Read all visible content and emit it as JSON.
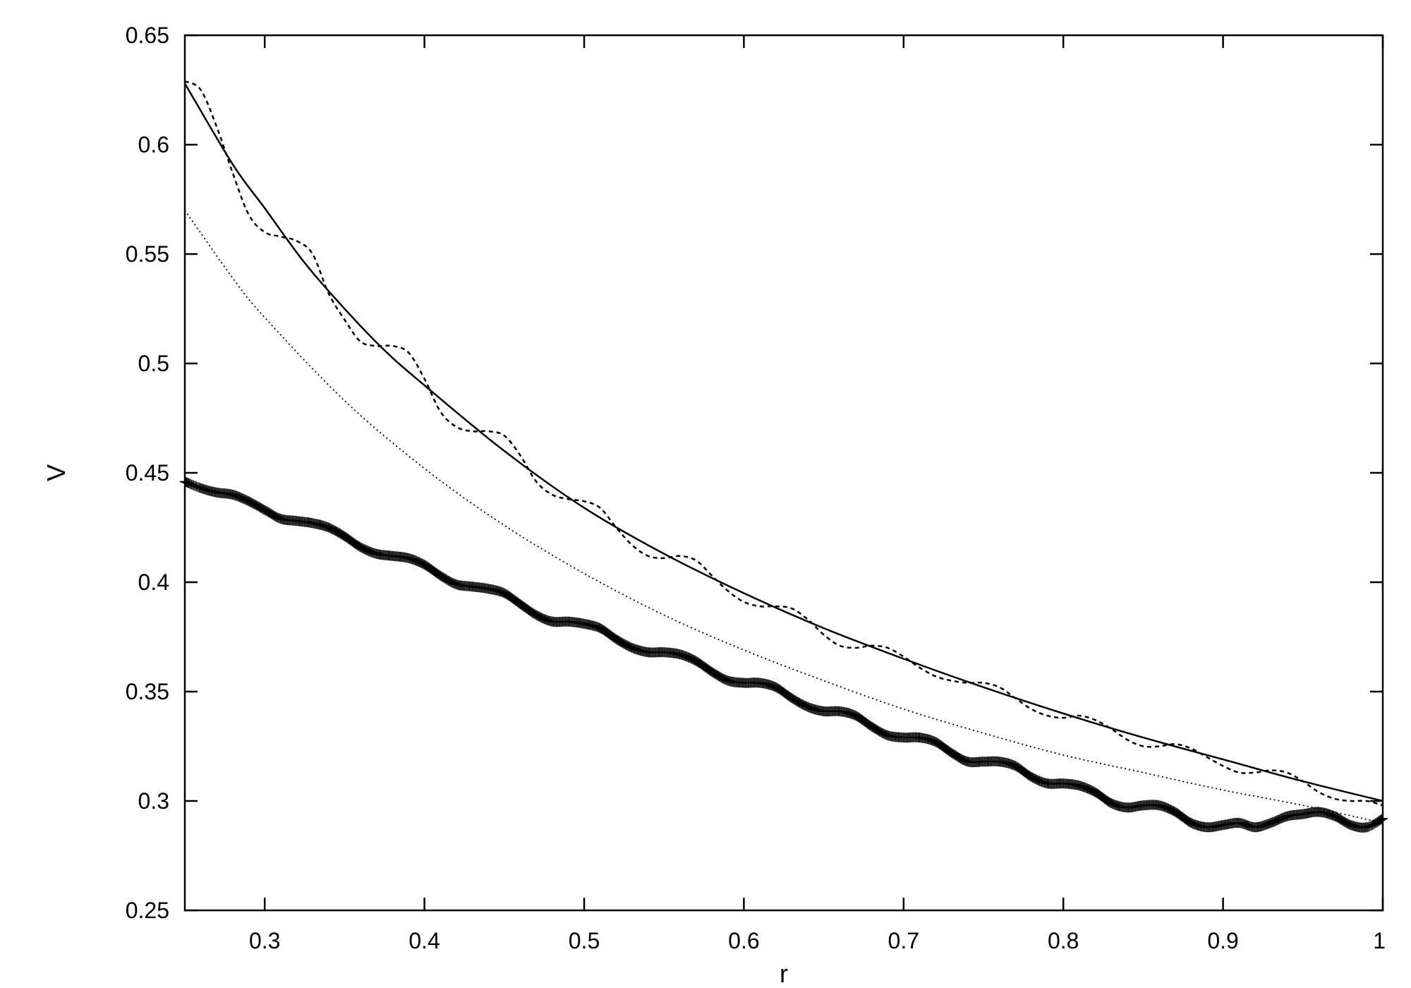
{
  "chart_data": {
    "type": "line",
    "title": "",
    "xlabel": "r",
    "ylabel": "V",
    "xlim": [
      0.25,
      1.0
    ],
    "ylim": [
      0.25,
      0.65
    ],
    "grid": false,
    "legend": "none",
    "xticks": [
      "0.3",
      "0.4",
      "0.5",
      "0.6",
      "0.7",
      "0.8",
      "0.9",
      "1"
    ],
    "yticks": [
      "0.25",
      "0.3",
      "0.35",
      "0.4",
      "0.45",
      "0.5",
      "0.55",
      "0.6",
      "0.65"
    ],
    "series": [
      {
        "style": "solid",
        "x": [
          0.25,
          0.28,
          0.3,
          0.325,
          0.35,
          0.375,
          0.4,
          0.45,
          0.5,
          0.55,
          0.6,
          0.65,
          0.7,
          0.75,
          0.8,
          0.85,
          0.9,
          0.95,
          1.0
        ],
        "y": [
          0.628,
          0.591,
          0.571,
          0.546,
          0.525,
          0.506,
          0.49,
          0.46,
          0.434,
          0.413,
          0.395,
          0.379,
          0.365,
          0.352,
          0.34,
          0.329,
          0.319,
          0.309,
          0.3
        ]
      },
      {
        "style": "dashed",
        "x": [
          0.25,
          0.26,
          0.27,
          0.28,
          0.29,
          0.3,
          0.31,
          0.32,
          0.33,
          0.34,
          0.35,
          0.36,
          0.37,
          0.38,
          0.39,
          0.4,
          0.41,
          0.42,
          0.43,
          0.44,
          0.45,
          0.46,
          0.47,
          0.48,
          0.49,
          0.5,
          0.51,
          0.52,
          0.53,
          0.54,
          0.55,
          0.56,
          0.57,
          0.58,
          0.59,
          0.6,
          0.61,
          0.62,
          0.63,
          0.64,
          0.65,
          0.66,
          0.67,
          0.68,
          0.69,
          0.7,
          0.71,
          0.72,
          0.73,
          0.74,
          0.75,
          0.76,
          0.77,
          0.78,
          0.79,
          0.8,
          0.81,
          0.82,
          0.83,
          0.84,
          0.85,
          0.86,
          0.87,
          0.88,
          0.89,
          0.9,
          0.91,
          0.92,
          0.93,
          0.94,
          0.95,
          0.96,
          0.97,
          0.98,
          0.99,
          1.0
        ],
        "y": [
          0.629,
          0.625,
          0.608,
          0.587,
          0.568,
          0.56,
          0.558,
          0.556,
          0.55,
          0.532,
          0.52,
          0.51,
          0.508,
          0.508,
          0.505,
          0.493,
          0.478,
          0.471,
          0.469,
          0.469,
          0.467,
          0.458,
          0.446,
          0.44,
          0.438,
          0.437,
          0.434,
          0.425,
          0.417,
          0.412,
          0.411,
          0.412,
          0.41,
          0.403,
          0.396,
          0.391,
          0.389,
          0.389,
          0.388,
          0.383,
          0.376,
          0.371,
          0.37,
          0.371,
          0.37,
          0.366,
          0.361,
          0.357,
          0.355,
          0.354,
          0.354,
          0.352,
          0.347,
          0.342,
          0.339,
          0.338,
          0.339,
          0.337,
          0.333,
          0.328,
          0.325,
          0.325,
          0.326,
          0.324,
          0.32,
          0.316,
          0.313,
          0.313,
          0.314,
          0.313,
          0.309,
          0.304,
          0.301,
          0.3,
          0.3,
          0.298
        ]
      },
      {
        "style": "dotted",
        "x": [
          0.25,
          0.28,
          0.3,
          0.35,
          0.4,
          0.45,
          0.5,
          0.55,
          0.6,
          0.65,
          0.7,
          0.75,
          0.8,
          0.85,
          0.9,
          0.95,
          1.0
        ],
        "y": [
          0.57,
          0.539,
          0.521,
          0.483,
          0.452,
          0.426,
          0.404,
          0.385,
          0.369,
          0.355,
          0.342,
          0.331,
          0.321,
          0.313,
          0.305,
          0.298,
          0.29
        ]
      },
      {
        "style": "plus-markers",
        "x": [
          0.25,
          0.26,
          0.27,
          0.28,
          0.29,
          0.3,
          0.31,
          0.32,
          0.33,
          0.34,
          0.35,
          0.36,
          0.37,
          0.38,
          0.39,
          0.4,
          0.41,
          0.42,
          0.43,
          0.44,
          0.45,
          0.46,
          0.47,
          0.48,
          0.49,
          0.5,
          0.51,
          0.52,
          0.53,
          0.54,
          0.55,
          0.56,
          0.57,
          0.58,
          0.59,
          0.6,
          0.61,
          0.62,
          0.63,
          0.64,
          0.65,
          0.66,
          0.67,
          0.68,
          0.69,
          0.7,
          0.71,
          0.72,
          0.73,
          0.74,
          0.75,
          0.76,
          0.77,
          0.78,
          0.79,
          0.8,
          0.81,
          0.82,
          0.83,
          0.84,
          0.85,
          0.86,
          0.87,
          0.88,
          0.89,
          0.9,
          0.91,
          0.92,
          0.93,
          0.94,
          0.95,
          0.96,
          0.97,
          0.98,
          0.99,
          1.0
        ],
        "y": [
          0.446,
          0.443,
          0.441,
          0.44,
          0.437,
          0.433,
          0.429,
          0.428,
          0.427,
          0.425,
          0.421,
          0.416,
          0.413,
          0.412,
          0.411,
          0.408,
          0.403,
          0.399,
          0.398,
          0.397,
          0.395,
          0.39,
          0.385,
          0.382,
          0.382,
          0.381,
          0.379,
          0.374,
          0.37,
          0.368,
          0.368,
          0.367,
          0.364,
          0.359,
          0.355,
          0.354,
          0.354,
          0.352,
          0.347,
          0.343,
          0.341,
          0.341,
          0.339,
          0.334,
          0.33,
          0.329,
          0.329,
          0.327,
          0.322,
          0.318,
          0.318,
          0.318,
          0.316,
          0.311,
          0.308,
          0.308,
          0.307,
          0.304,
          0.299,
          0.297,
          0.298,
          0.298,
          0.295,
          0.29,
          0.288,
          0.289,
          0.29,
          0.288,
          0.29,
          0.293,
          0.294,
          0.295,
          0.293,
          0.289,
          0.288,
          0.292
        ]
      }
    ]
  }
}
